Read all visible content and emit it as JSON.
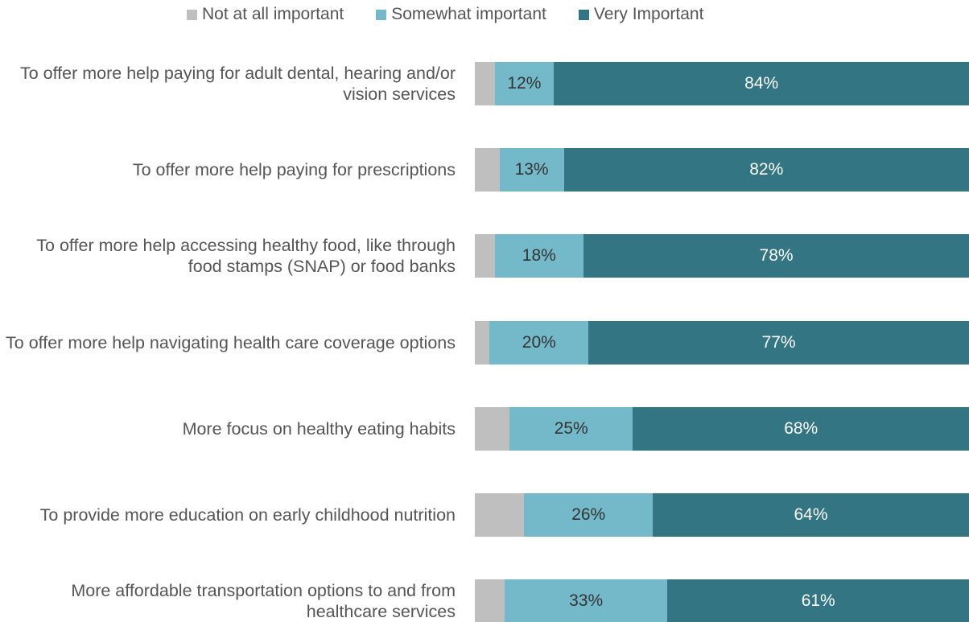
{
  "chart_data": {
    "type": "stacked-bar",
    "orientation": "horizontal",
    "categories": [
      "To offer more help paying for adult dental, hearing and/or vision services",
      "To offer more help paying for prescriptions",
      "To offer more help accessing healthy food, like through food stamps (SNAP) or food banks",
      "To offer more help navigating health care coverage options",
      "More focus on healthy eating habits",
      "To provide more education on early childhood nutrition",
      "More affordable transportation options to and from healthcare services"
    ],
    "series": [
      {
        "name": "Not at all important",
        "color": "#bfbfbf",
        "values": [
          4,
          5,
          4,
          3,
          7,
          10,
          6
        ]
      },
      {
        "name": "Somewhat important",
        "color": "#74b9c9",
        "values": [
          12,
          13,
          18,
          20,
          25,
          26,
          33
        ],
        "value_labels": [
          "12%",
          "13%",
          "18%",
          "20%",
          "25%",
          "26%",
          "33%"
        ]
      },
      {
        "name": "Very Important",
        "color": "#337582",
        "values": [
          84,
          82,
          78,
          77,
          68,
          64,
          61
        ],
        "value_labels": [
          "84%",
          "82%",
          "78%",
          "77%",
          "68%",
          "64%",
          "61%"
        ]
      }
    ],
    "xlim": [
      0,
      100
    ],
    "legend": "top"
  }
}
